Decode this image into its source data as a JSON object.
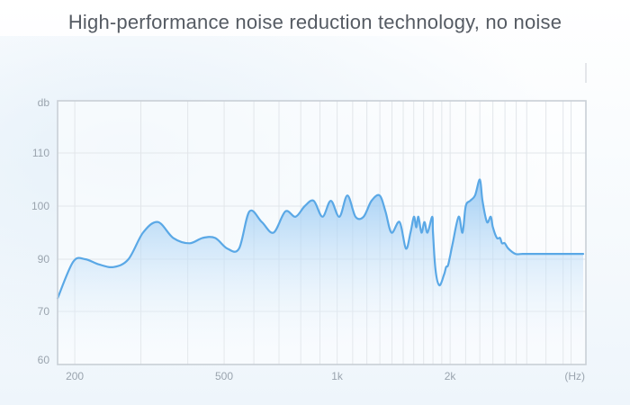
{
  "header": {
    "title": "High-performance noise reduction technology, no noise"
  },
  "colors": {
    "line": "#5aa8e6",
    "fill_top": "#8ec4f2",
    "frame": "#c9cfd6",
    "grid": "#e2e6ea",
    "tick_text": "#9aa4ae",
    "title_text": "#555b63"
  },
  "chart_data": {
    "type": "area",
    "title": "High-performance noise reduction technology, no noise",
    "xlabel": "(Hz)",
    "ylabel": "db",
    "x_scale": "log",
    "xlim": [
      180,
      4600
    ],
    "y_tick_labels": [
      "60",
      "70",
      "90",
      "100",
      "110",
      "db"
    ],
    "x_tick_labels": [
      {
        "label": "200",
        "x": 200
      },
      {
        "label": "500",
        "x": 500
      },
      {
        "label": "1k",
        "x": 1000
      },
      {
        "label": "2k",
        "x": 2000
      },
      {
        "label": "(Hz)",
        "x": 4500
      }
    ],
    "grid": true,
    "x": [
      180,
      198,
      213,
      232,
      254,
      278,
      304,
      333,
      366,
      404,
      438,
      473,
      510,
      548,
      584,
      630,
      677,
      728,
      775,
      820,
      866,
      914,
      962,
      1014,
      1065,
      1119,
      1176,
      1235,
      1298,
      1345,
      1396,
      1467,
      1525,
      1568,
      1602,
      1625,
      1646,
      1678,
      1708,
      1741,
      1792,
      1800,
      1828,
      1872,
      1926,
      1952,
      1978,
      2032,
      2107,
      2158,
      2201,
      2262,
      2330,
      2400,
      2439,
      2507,
      2566,
      2600,
      2665,
      2716,
      2750,
      2797,
      2858,
      2985,
      3116,
      3298,
      3519,
      3700,
      3867,
      4066,
      4284,
      4525
    ],
    "y": [
      75,
      89,
      90,
      88,
      87,
      90,
      95,
      97,
      94,
      93,
      94,
      94,
      92,
      92,
      99,
      97,
      95,
      99,
      98,
      100,
      101,
      98,
      101,
      98,
      102,
      98,
      98,
      101,
      102,
      99,
      95,
      97,
      92,
      95,
      98,
      96,
      98,
      95,
      97,
      95,
      98,
      95,
      86,
      80,
      84,
      87,
      88,
      93,
      98,
      95,
      100,
      101,
      102,
      105,
      101,
      97,
      98,
      96,
      94,
      94,
      93,
      93,
      92,
      91,
      91,
      91,
      91,
      91,
      91,
      91,
      91,
      91
    ]
  }
}
